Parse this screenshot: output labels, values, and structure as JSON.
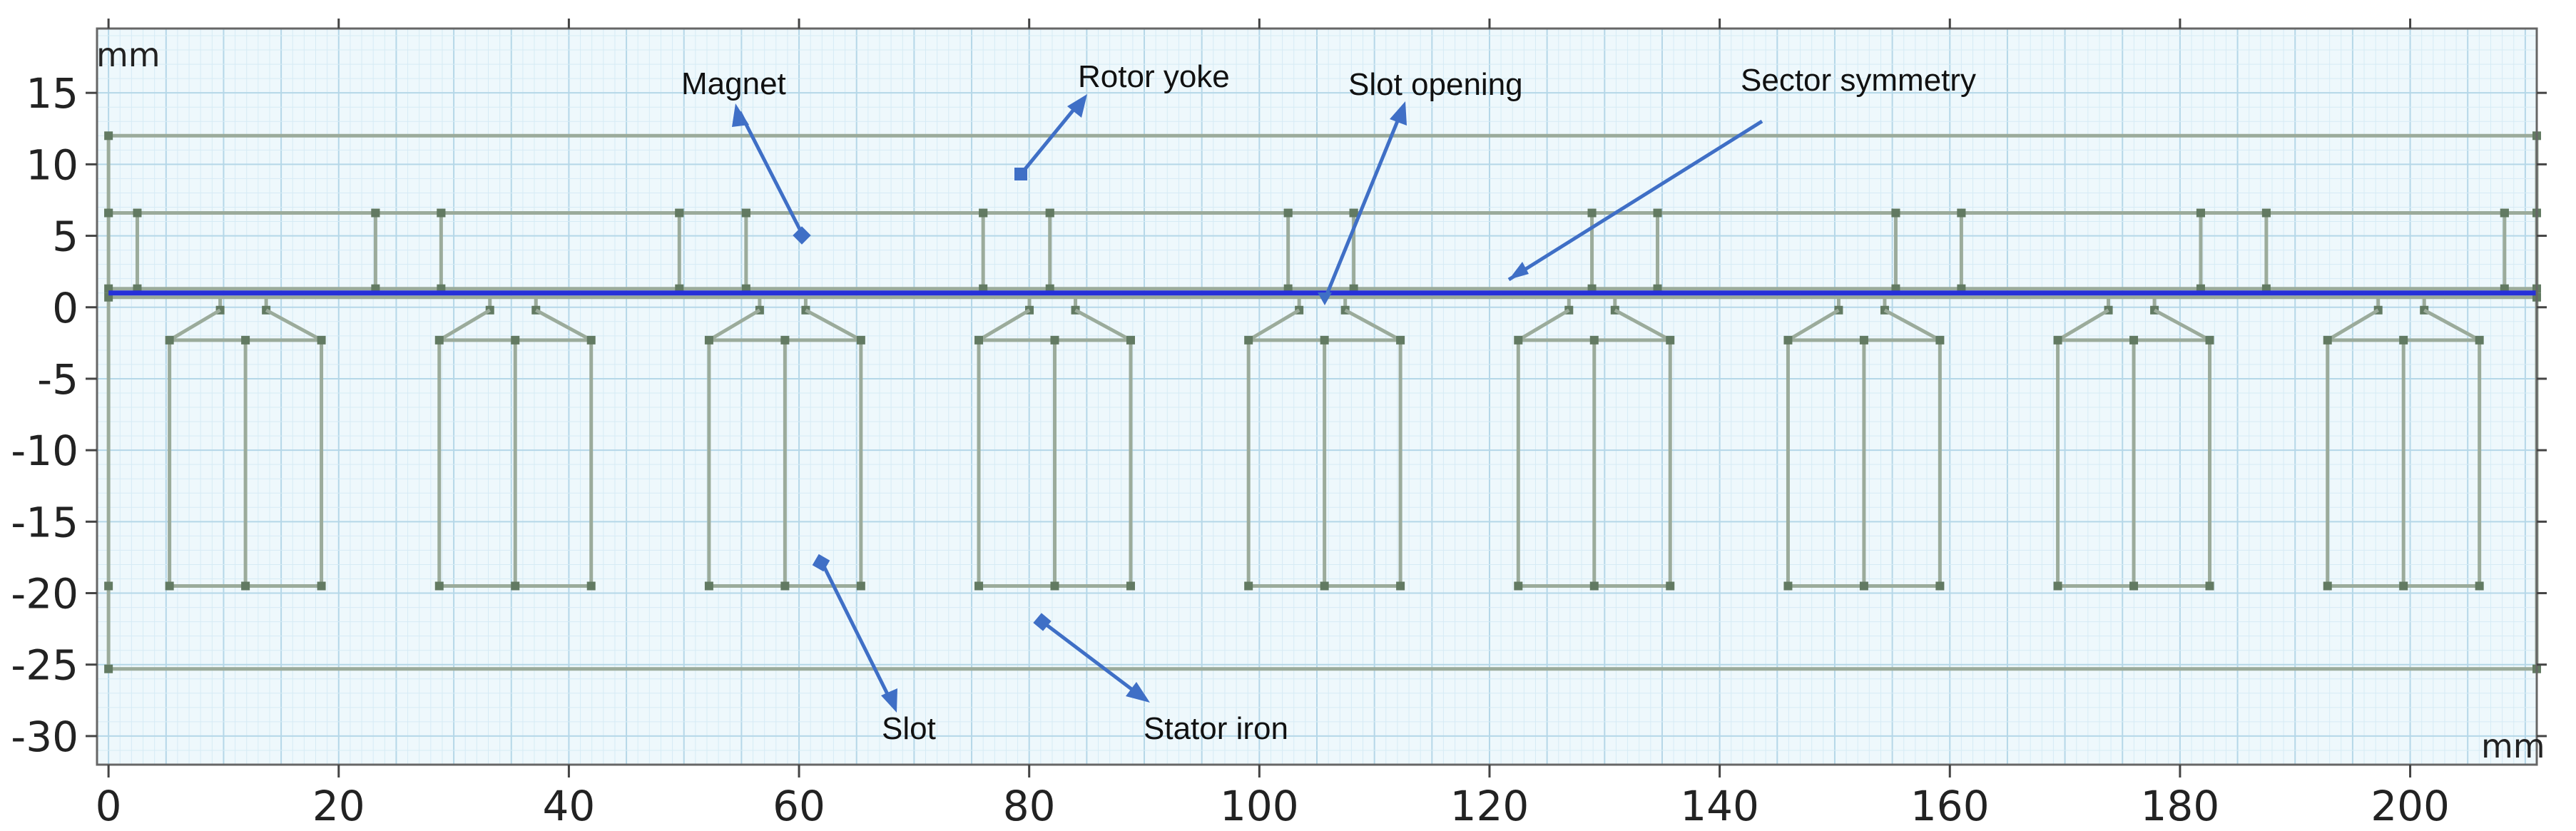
{
  "axes": {
    "x_unit": "mm",
    "y_unit": "mm",
    "x_ticks": [
      "0",
      "20",
      "40",
      "60",
      "80",
      "100",
      "120",
      "140",
      "160",
      "180",
      "200"
    ],
    "y_ticks": [
      "15",
      "10",
      "5",
      "0",
      "-5",
      "-10",
      "-15",
      "-20",
      "-25",
      "-30"
    ],
    "x_range": [
      -1,
      211
    ],
    "y_range": [
      -32,
      19.5
    ],
    "grid": true
  },
  "colors": {
    "grid_minor": "#d6ebf5",
    "grid_major": "#b5d7e8",
    "plot_background": "#eef8fc",
    "geometry": "#9bab9b",
    "vertex": "#627a62",
    "sector_symmetry": "#2630d9",
    "annotation": "#3f6fc6"
  },
  "annotations": {
    "magnet": "Magnet",
    "rotor_yoke": "Rotor yoke",
    "slot_opening": "Slot opening",
    "sector_symmetry": "Sector symmetry",
    "slot": "Slot",
    "stator_iron": "Stator iron"
  }
}
